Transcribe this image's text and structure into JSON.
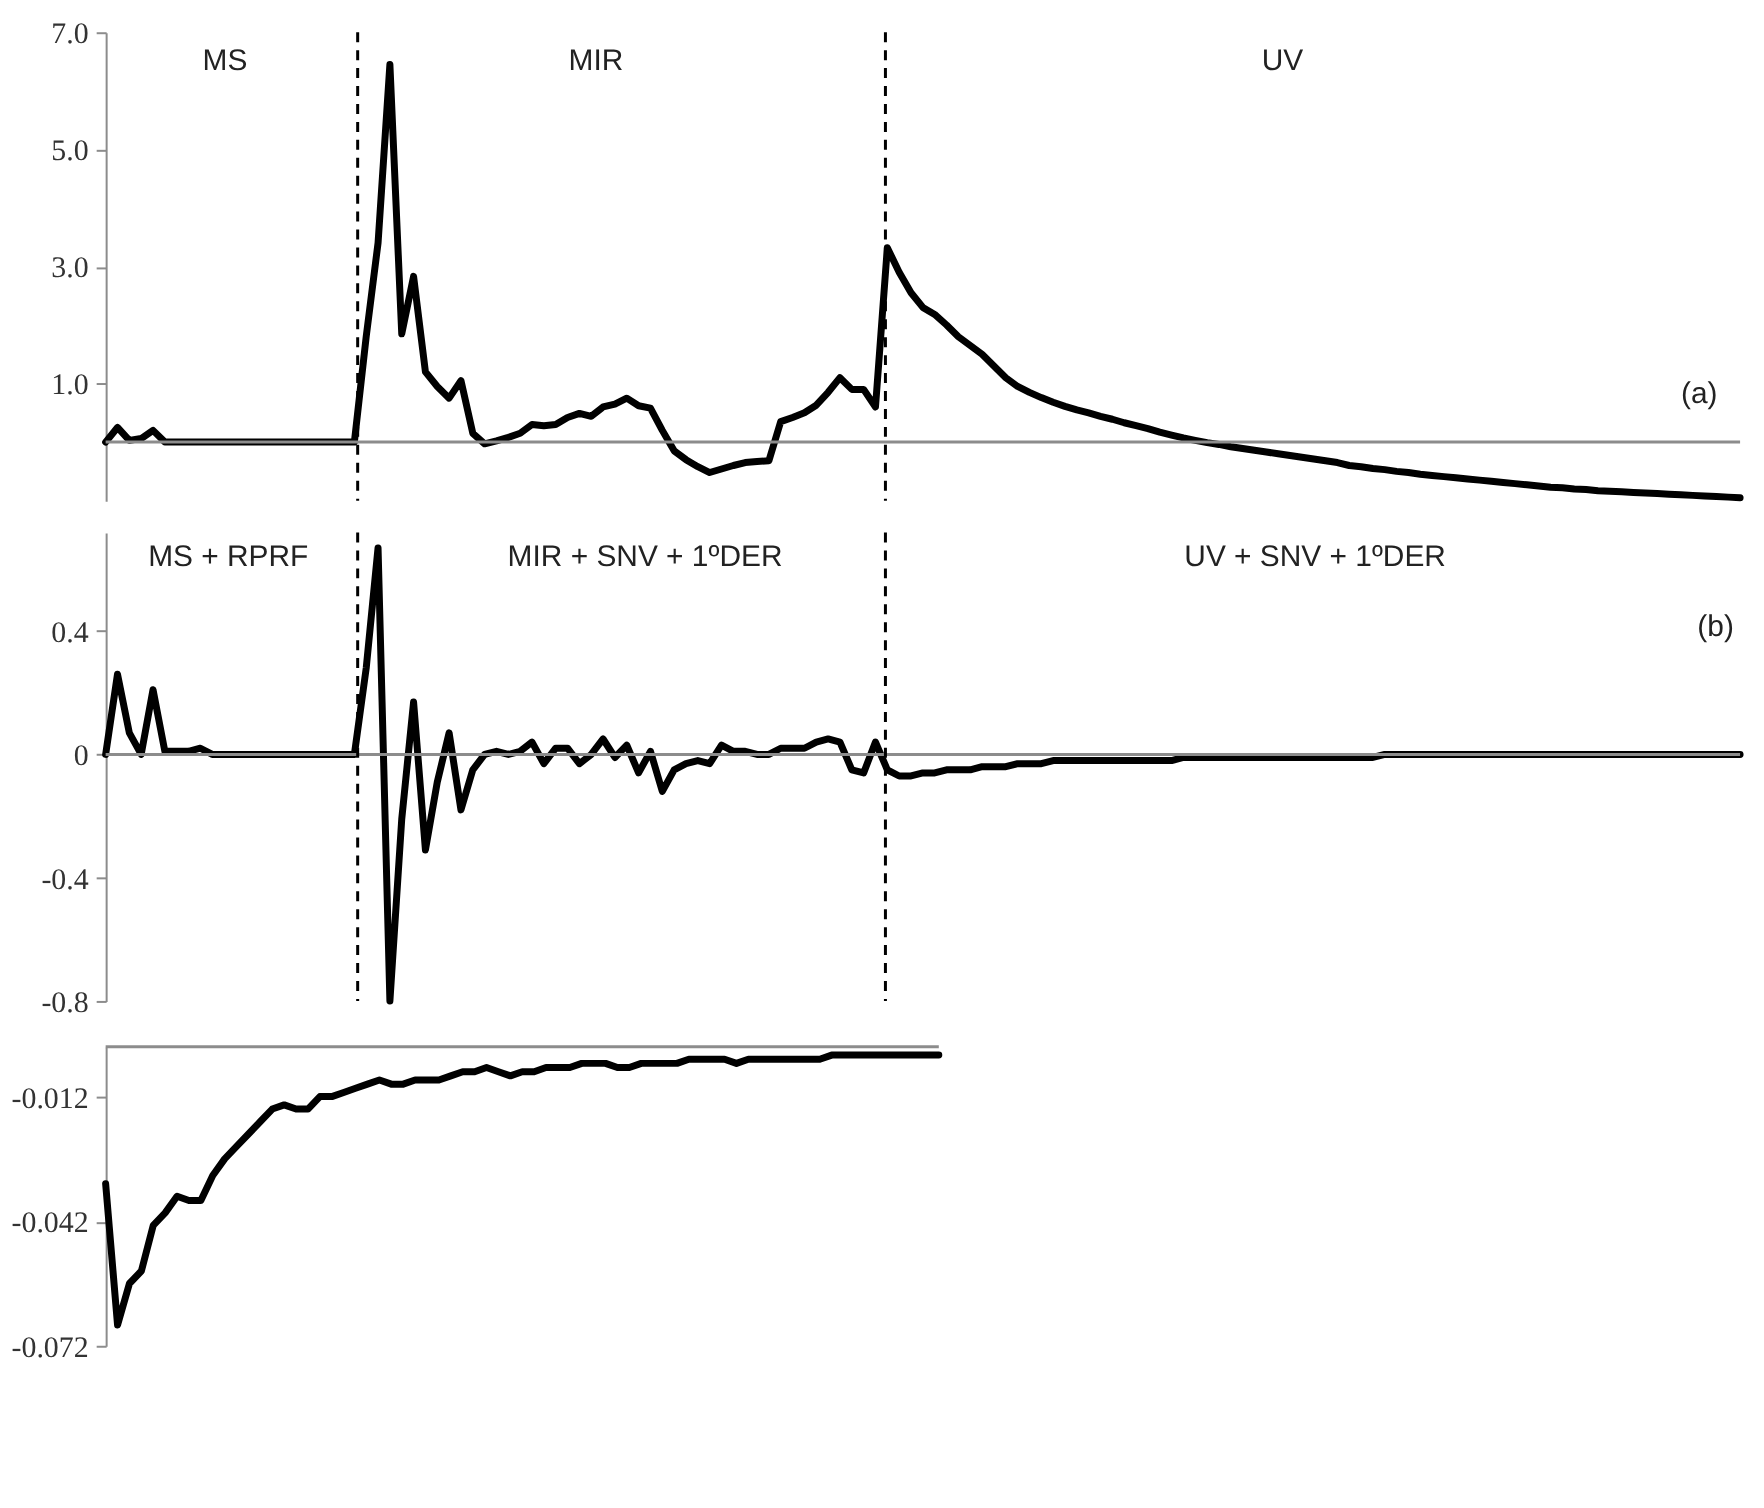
{
  "chart_data": [
    {
      "type": "line",
      "color": "#000000",
      "line_style": "solid",
      "tick_labels": "y",
      "categories": [
        null,
        null,
        null,
        null,
        null,
        null,
        null,
        null,
        null,
        null,
        null,
        null,
        null,
        null,
        null,
        null,
        null,
        null,
        null,
        null,
        null,
        null,
        null,
        null,
        null,
        null,
        null,
        null,
        null,
        null,
        null,
        null,
        null,
        null,
        null,
        null,
        null,
        null,
        null,
        null,
        null,
        null,
        null,
        null,
        null,
        null,
        null,
        null,
        null,
        null,
        null,
        null,
        null,
        null,
        null,
        null,
        null,
        null,
        null,
        null,
        null,
        null,
        null,
        null,
        null,
        null,
        null,
        null,
        null,
        null,
        null,
        null,
        null,
        null,
        null,
        null,
        null,
        null,
        null,
        null,
        null,
        null,
        null,
        null,
        null,
        null,
        null,
        null,
        null,
        null,
        null,
        null,
        null,
        null,
        null,
        null,
        null,
        null,
        null,
        null,
        null,
        null,
        null,
        null,
        null,
        null,
        null,
        null,
        null,
        null,
        null,
        null,
        null,
        null,
        null,
        null,
        null,
        null,
        null,
        null,
        null,
        null,
        null,
        null,
        null,
        null,
        null,
        null,
        null,
        null,
        null,
        null,
        null,
        null,
        null,
        null,
        null,
        null,
        null
      ],
      "values": [
        0,
        0.25,
        0.03,
        0.06,
        0.2,
        0,
        0,
        0,
        0,
        0,
        0,
        0,
        0,
        0,
        0,
        0,
        0,
        0,
        0,
        0,
        0,
        0,
        1.8,
        3.4,
        6.45,
        1.85,
        2.83,
        1.2,
        0.95,
        0.75,
        1.05,
        0.15,
        -0.03,
        0.02,
        0.08,
        0.15,
        0.3,
        0.28,
        0.3,
        0.42,
        0.49,
        0.44,
        0.6,
        0.65,
        0.75,
        0.62,
        0.58,
        0.2,
        -0.15,
        -0.3,
        -0.42,
        -0.52,
        -0.46,
        -0.4,
        -0.35,
        -0.33,
        -0.32,
        0.35,
        0.42,
        0.5,
        0.63,
        0.85,
        1.1,
        0.9,
        0.9,
        0.6,
        3.32,
        2.9,
        2.55,
        2.3,
        2.18,
        2.0,
        1.8,
        1.65,
        1.5,
        1.3,
        1.1,
        0.95,
        0.85,
        0.76,
        0.68,
        0.61,
        0.55,
        0.5,
        0.44,
        0.39,
        0.33,
        0.28,
        0.23,
        0.17,
        0.12,
        0.07,
        0.03,
        -0.01,
        -0.04,
        -0.08,
        -0.11,
        -0.14,
        -0.17,
        -0.2,
        -0.23,
        -0.26,
        -0.29,
        -0.32,
        -0.35,
        -0.4,
        -0.42,
        -0.45,
        -0.47,
        -0.5,
        -0.52,
        -0.55,
        -0.57,
        -0.59,
        -0.61,
        -0.63,
        -0.65,
        -0.67,
        -0.69,
        -0.71,
        -0.73,
        -0.75,
        -0.77,
        -0.78,
        -0.8,
        -0.81,
        -0.83,
        -0.84,
        -0.85,
        -0.86,
        -0.87,
        -0.88,
        -0.89,
        -0.9,
        -0.91,
        -0.92,
        -0.93,
        -0.94,
        -0.95
      ],
      "ylim": [
        -1.0,
        7.0
      ],
      "yticks": [
        {
          "value": 1,
          "label": "1.0"
        },
        {
          "value": 3,
          "label": "3.0"
        },
        {
          "value": 5,
          "label": "5.0"
        },
        {
          "value": 7,
          "label": "7.0"
        }
      ],
      "ref_lines": [
        {
          "axis": "y",
          "value": 0,
          "color": "#8c8c8c",
          "line_style": "solid"
        }
      ],
      "annotations": [
        "MS",
        "MIR",
        "UV",
        "(a)"
      ]
    },
    {
      "type": "line",
      "color": "#000000",
      "line_style": "solid",
      "tick_labels": "y",
      "categories": [
        null,
        null,
        null,
        null,
        null,
        null,
        null,
        null,
        null,
        null,
        null,
        null,
        null,
        null,
        null,
        null,
        null,
        null,
        null,
        null,
        null,
        null,
        null,
        null,
        null,
        null,
        null,
        null,
        null,
        null,
        null,
        null,
        null,
        null,
        null,
        null,
        null,
        null,
        null,
        null,
        null,
        null,
        null,
        null,
        null,
        null,
        null,
        null,
        null,
        null,
        null,
        null,
        null,
        null,
        null,
        null,
        null,
        null,
        null,
        null,
        null,
        null,
        null,
        null,
        null,
        null,
        null,
        null,
        null,
        null,
        null,
        null,
        null,
        null,
        null,
        null,
        null,
        null,
        null,
        null,
        null,
        null,
        null,
        null,
        null,
        null,
        null,
        null,
        null,
        null,
        null,
        null,
        null,
        null,
        null,
        null,
        null,
        null,
        null,
        null,
        null,
        null,
        null,
        null,
        null,
        null,
        null,
        null,
        null,
        null,
        null,
        null,
        null,
        null,
        null,
        null,
        null,
        null,
        null,
        null,
        null,
        null,
        null,
        null,
        null,
        null,
        null,
        null,
        null,
        null,
        null,
        null,
        null,
        null,
        null,
        null,
        null,
        null,
        null
      ],
      "values": [
        0,
        0.26,
        0.07,
        0,
        0.21,
        0.01,
        0.01,
        0.01,
        0.02,
        0,
        0,
        0,
        0,
        0,
        0,
        0,
        0,
        0,
        0,
        0,
        0,
        0,
        0.28,
        0.67,
        -0.8,
        -0.21,
        0.17,
        -0.31,
        -0.09,
        0.07,
        -0.18,
        -0.05,
        0,
        0.01,
        0,
        0.01,
        0.04,
        -0.03,
        0.02,
        0.02,
        -0.03,
        0,
        0.05,
        -0.01,
        0.03,
        -0.06,
        0.01,
        -0.12,
        -0.05,
        -0.03,
        -0.02,
        -0.03,
        0.03,
        0.01,
        0.01,
        0,
        0,
        0.02,
        0.02,
        0.02,
        0.04,
        0.05,
        0.04,
        -0.05,
        -0.06,
        0.04,
        -0.05,
        -0.07,
        -0.07,
        -0.06,
        -0.06,
        -0.05,
        -0.05,
        -0.05,
        -0.04,
        -0.04,
        -0.04,
        -0.03,
        -0.03,
        -0.03,
        -0.02,
        -0.02,
        -0.02,
        -0.02,
        -0.02,
        -0.02,
        -0.02,
        -0.02,
        -0.02,
        -0.02,
        -0.02,
        -0.01,
        -0.01,
        -0.01,
        -0.01,
        -0.01,
        -0.01,
        -0.01,
        -0.01,
        -0.01,
        -0.01,
        -0.01,
        -0.01,
        -0.01,
        -0.01,
        -0.01,
        -0.01,
        -0.01,
        0,
        0,
        0,
        0,
        0,
        0,
        0,
        0,
        0,
        0,
        0,
        0,
        0,
        0,
        0,
        0,
        0,
        0,
        0,
        0,
        0,
        0,
        0,
        0,
        0,
        0,
        0,
        0,
        0,
        0,
        0
      ],
      "ylim": [
        -0.8,
        0.72
      ],
      "yticks": [
        0.4,
        0,
        -0.4,
        -0.8
      ],
      "ref_lines": [
        {
          "axis": "y",
          "value": 0,
          "color": "#8c8c8c",
          "line_style": "solid"
        }
      ],
      "annotations": [
        "MS + RPRF",
        "MIR +  SNV + 1ºDER",
        "UV + SNV + 1ºDER",
        "(b)"
      ]
    },
    {
      "type": "line",
      "color": "#000000",
      "line_style": "solid",
      "tick_labels": "y",
      "categories": [
        null,
        null,
        null,
        null,
        null,
        null,
        null,
        null,
        null,
        null,
        null,
        null,
        null,
        null,
        null,
        null,
        null,
        null,
        null,
        null,
        null,
        null,
        null,
        null,
        null,
        null,
        null,
        null,
        null,
        null,
        null,
        null,
        null,
        null,
        null,
        null,
        null,
        null,
        null,
        null,
        null,
        null,
        null,
        null,
        null,
        null,
        null,
        null,
        null,
        null,
        null,
        null,
        null,
        null,
        null,
        null,
        null,
        null,
        null,
        null,
        null,
        null,
        null,
        null,
        null,
        null,
        null,
        null,
        null,
        null,
        null
      ],
      "values": [
        -0.033,
        -0.067,
        -0.057,
        -0.054,
        -0.043,
        -0.04,
        -0.036,
        -0.037,
        -0.037,
        -0.031,
        -0.027,
        -0.024,
        -0.021,
        -0.018,
        -0.015,
        -0.014,
        -0.015,
        -0.015,
        -0.012,
        -0.012,
        -0.011,
        -0.01,
        -0.009,
        -0.008,
        -0.009,
        -0.009,
        -0.008,
        -0.008,
        -0.008,
        -0.007,
        -0.006,
        -0.006,
        -0.005,
        -0.006,
        -0.007,
        -0.006,
        -0.006,
        -0.005,
        -0.005,
        -0.005,
        -0.004,
        -0.004,
        -0.004,
        -0.005,
        -0.005,
        -0.004,
        -0.004,
        -0.004,
        -0.004,
        -0.003,
        -0.003,
        -0.003,
        -0.003,
        -0.004,
        -0.003,
        -0.003,
        -0.003,
        -0.003,
        -0.003,
        -0.003,
        -0.003,
        -0.002,
        -0.002,
        -0.002,
        -0.002,
        -0.002,
        -0.002,
        -0.002,
        -0.002,
        -0.002,
        -0.002
      ],
      "ylim": [
        -0.072,
        0
      ],
      "yticks": [
        -0.012,
        -0.042,
        -0.072
      ],
      "ref_lines": [
        {
          "axis": "y",
          "value": 0,
          "color": "#8c8c8c",
          "line_style": "solid"
        }
      ]
    }
  ]
}
